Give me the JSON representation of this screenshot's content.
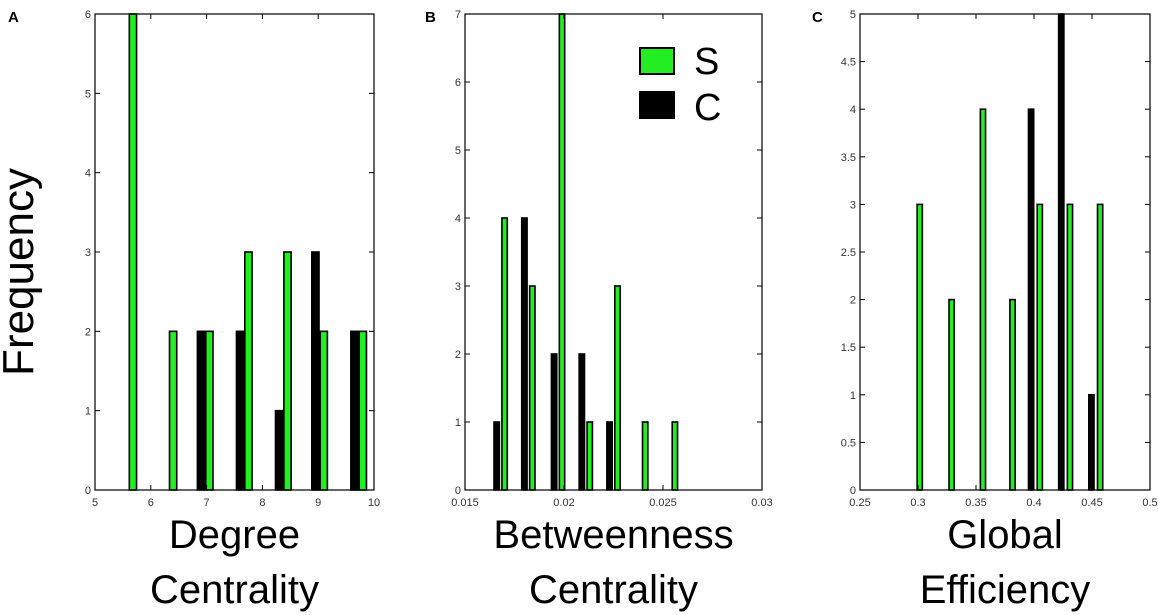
{
  "figure": {
    "ylabel": "Frequency"
  },
  "legend": {
    "entries": [
      {
        "label": "S",
        "color": "#22ee22"
      },
      {
        "label": "C",
        "color": "#000000"
      }
    ]
  },
  "colors": {
    "S": "#22ee22",
    "C": "#000000",
    "axis": "#000000",
    "bar_edge": "#000000"
  },
  "chart_data": [
    {
      "type": "bar",
      "panel": "A",
      "xlabel_lines": [
        "Degree",
        "Centrality"
      ],
      "ylabel": "Frequency",
      "xlim": [
        5,
        10
      ],
      "ylim": [
        0,
        6
      ],
      "xticks": [
        5,
        6,
        7,
        8,
        9,
        10
      ],
      "xtick_labels": [
        "5",
        "6",
        "7",
        "8",
        "9",
        "10"
      ],
      "yticks": [
        0,
        1,
        2,
        3,
        4,
        5,
        6
      ],
      "ytick_labels": [
        "0",
        "1",
        "2",
        "3",
        "4",
        "5",
        "6"
      ],
      "bar_width": 0.13,
      "series": [
        {
          "name": "S",
          "bars": [
            {
              "x": 5.68,
              "value": 6
            },
            {
              "x": 6.4,
              "value": 2
            },
            {
              "x": 7.05,
              "value": 2
            },
            {
              "x": 7.75,
              "value": 3
            },
            {
              "x": 8.45,
              "value": 3
            },
            {
              "x": 9.1,
              "value": 2
            },
            {
              "x": 9.8,
              "value": 2
            }
          ]
        },
        {
          "name": "C",
          "bars": [
            {
              "x": 6.9,
              "value": 2
            },
            {
              "x": 7.6,
              "value": 2
            },
            {
              "x": 8.3,
              "value": 1
            },
            {
              "x": 8.95,
              "value": 3
            },
            {
              "x": 9.65,
              "value": 2
            }
          ]
        }
      ]
    },
    {
      "type": "bar",
      "panel": "B",
      "xlabel_lines": [
        "Betweenness",
        "Centrality"
      ],
      "ylabel": "",
      "xlim": [
        0.015,
        0.03
      ],
      "ylim": [
        0,
        7
      ],
      "xticks": [
        0.015,
        0.02,
        0.025,
        0.03
      ],
      "xtick_labels": [
        "0.015",
        "0.02",
        "0.025",
        "0.03"
      ],
      "yticks": [
        0,
        1,
        2,
        3,
        4,
        5,
        6,
        7
      ],
      "ytick_labels": [
        "0",
        "1",
        "2",
        "3",
        "4",
        "5",
        "6",
        "7"
      ],
      "bar_width": 0.00027,
      "series": [
        {
          "name": "S",
          "bars": [
            {
              "x": 0.017,
              "value": 4
            },
            {
              "x": 0.0184,
              "value": 3
            },
            {
              "x": 0.0199,
              "value": 7
            },
            {
              "x": 0.0213,
              "value": 1
            },
            {
              "x": 0.0227,
              "value": 3
            },
            {
              "x": 0.0241,
              "value": 1
            },
            {
              "x": 0.0256,
              "value": 1
            }
          ]
        },
        {
          "name": "C",
          "bars": [
            {
              "x": 0.0166,
              "value": 1
            },
            {
              "x": 0.018,
              "value": 4
            },
            {
              "x": 0.0195,
              "value": 2
            },
            {
              "x": 0.0209,
              "value": 2
            },
            {
              "x": 0.0223,
              "value": 1
            }
          ]
        }
      ]
    },
    {
      "type": "bar",
      "panel": "C",
      "xlabel_lines": [
        "Global",
        "Efficiency"
      ],
      "ylabel": "",
      "xlim": [
        0.25,
        0.5
      ],
      "ylim": [
        0,
        5
      ],
      "xticks": [
        0.25,
        0.3,
        0.35,
        0.4,
        0.45,
        0.5
      ],
      "xtick_labels": [
        "0.25",
        "0.3",
        "0.35",
        "0.4",
        "0.45",
        "0.5"
      ],
      "yticks": [
        0,
        0.5,
        1,
        1.5,
        2,
        2.5,
        3,
        3.5,
        4,
        4.5,
        5
      ],
      "ytick_labels": [
        "0",
        "0.5",
        "1",
        "1.5",
        "2",
        "2.5",
        "3",
        "3.5",
        "4",
        "4.5",
        "5"
      ],
      "bar_width": 0.0045,
      "series": [
        {
          "name": "S",
          "bars": [
            {
              "x": 0.3015,
              "value": 3
            },
            {
              "x": 0.329,
              "value": 2
            },
            {
              "x": 0.356,
              "value": 4
            },
            {
              "x": 0.3815,
              "value": 2
            },
            {
              "x": 0.405,
              "value": 3
            },
            {
              "x": 0.431,
              "value": 3
            },
            {
              "x": 0.457,
              "value": 3
            }
          ]
        },
        {
          "name": "C",
          "bars": [
            {
              "x": 0.3975,
              "value": 4
            },
            {
              "x": 0.4235,
              "value": 5
            },
            {
              "x": 0.4495,
              "value": 1
            }
          ]
        }
      ]
    }
  ]
}
